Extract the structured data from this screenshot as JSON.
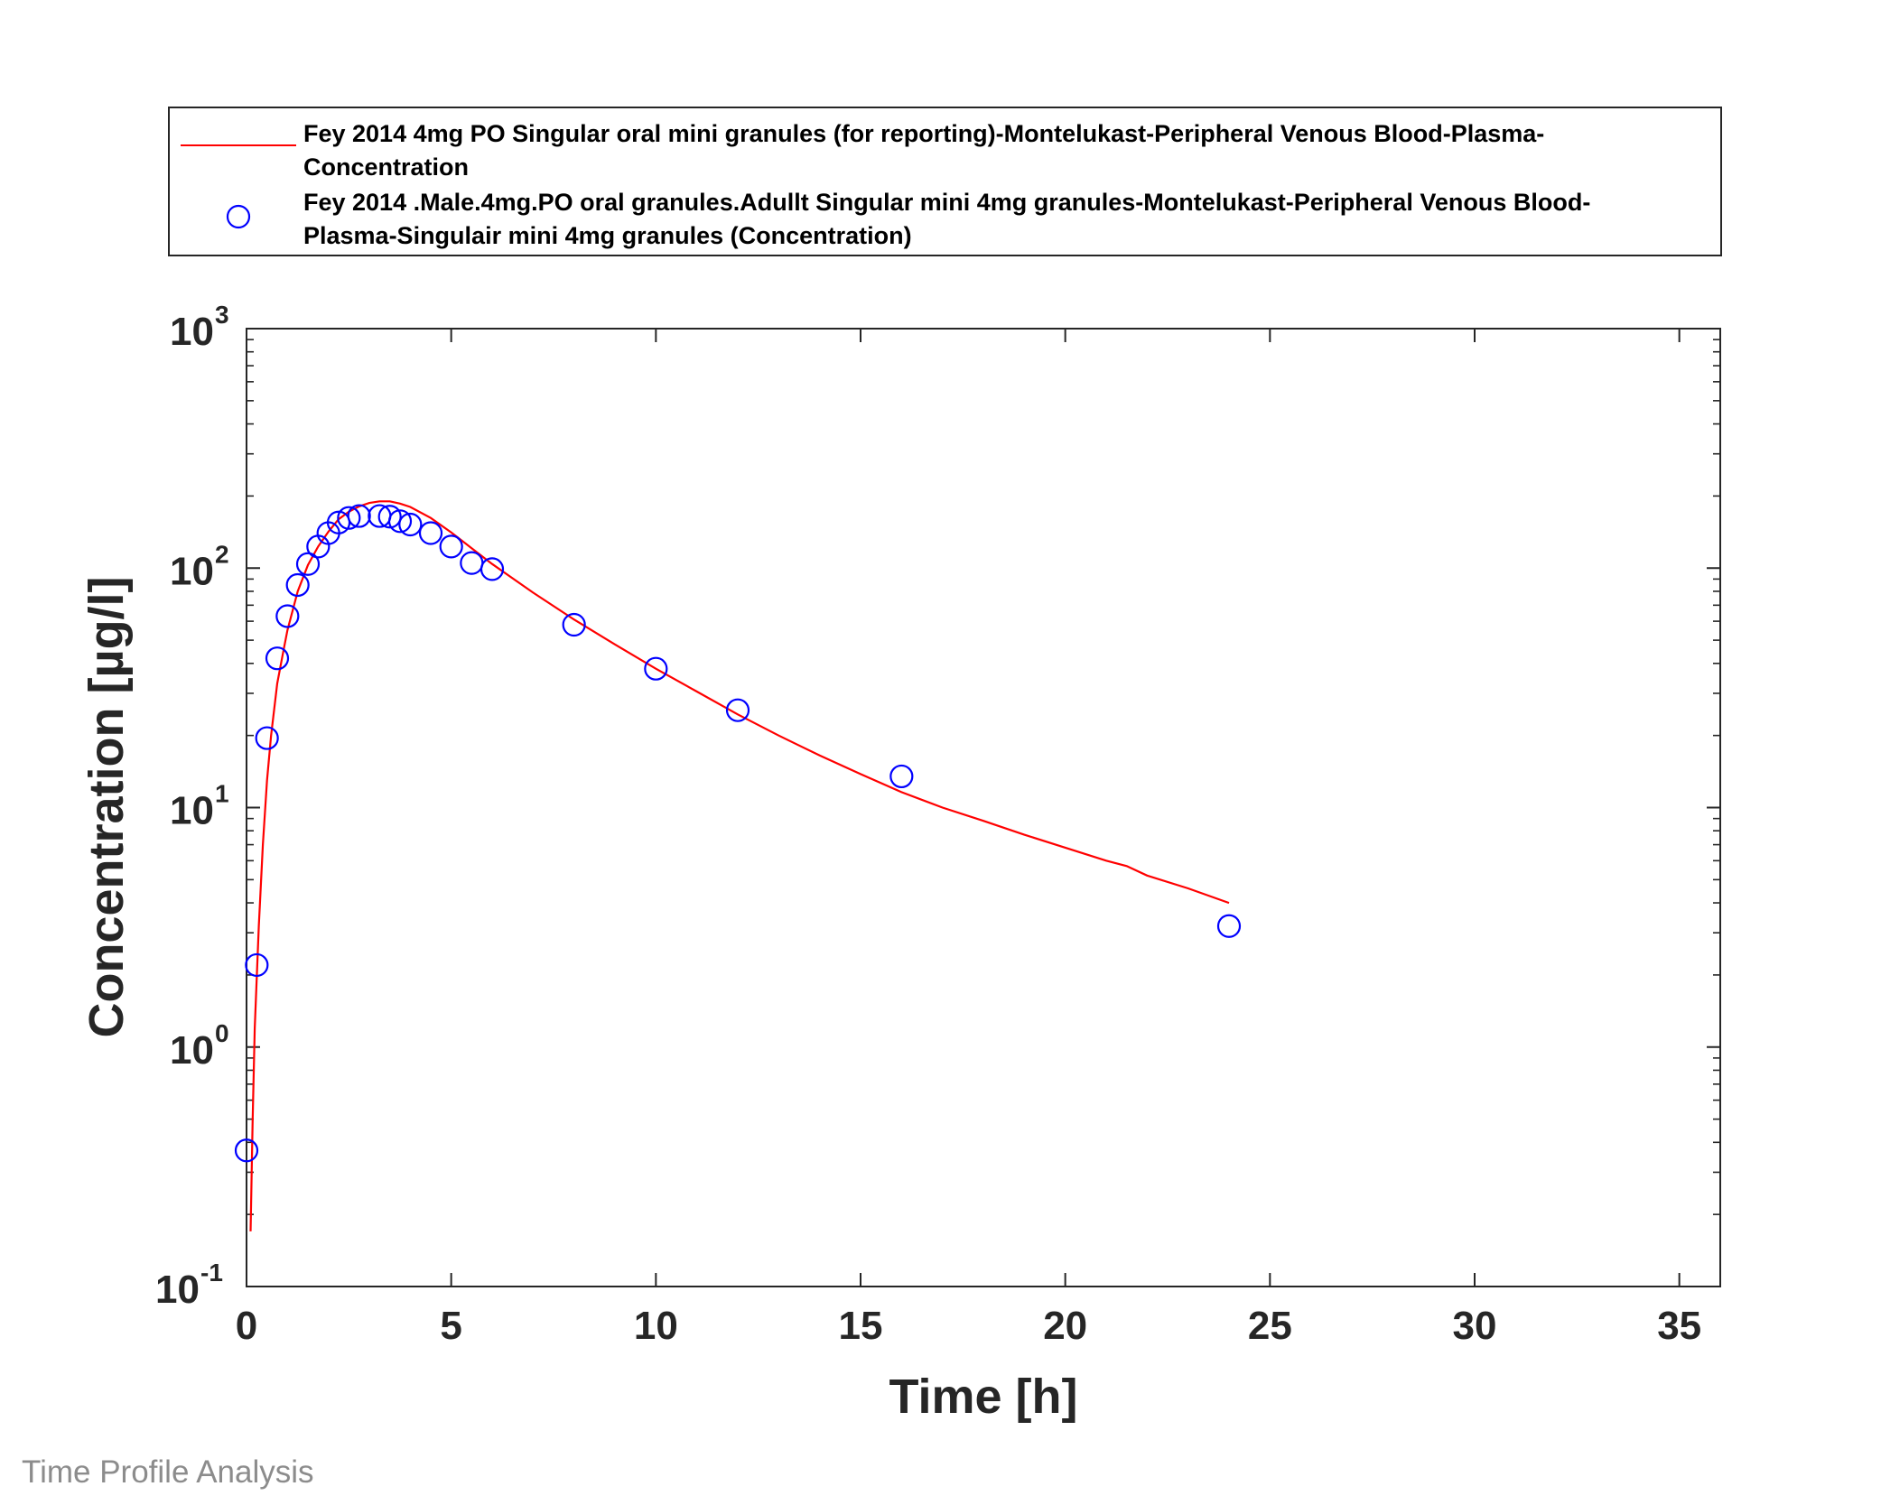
{
  "chart_data": {
    "type": "line",
    "xlabel": "Time [h]",
    "ylabel": "Concentration [µg/l]",
    "xlim": [
      0,
      36
    ],
    "ylim": [
      0.1,
      1000
    ],
    "yscale": "log",
    "grid": false,
    "legend_position": "top (above plot)",
    "xticks": [
      "0",
      "5",
      "10",
      "15",
      "20",
      "25",
      "30",
      "35"
    ],
    "yticks": [
      {
        "base": "10",
        "exp": "-1"
      },
      {
        "base": "10",
        "exp": "0"
      },
      {
        "base": "10",
        "exp": "1"
      },
      {
        "base": "10",
        "exp": "2"
      },
      {
        "base": "10",
        "exp": "3"
      }
    ],
    "series": [
      {
        "name": "Fey 2014 4mg PO Singular oral mini granules (for reporting)-Montelukast-Peripheral Venous Blood-Plasma-Concentration",
        "legend_lines": [
          "Fey 2014 4mg PO Singular oral mini granules (for reporting)-Montelukast-Peripheral Venous Blood-Plasma-",
          "Concentration"
        ],
        "style": "line",
        "color": "#ff0000",
        "x": [
          0.1,
          0.15,
          0.2,
          0.3,
          0.4,
          0.5,
          0.6,
          0.75,
          0.9,
          1.0,
          1.25,
          1.5,
          1.75,
          2.0,
          2.25,
          2.5,
          2.75,
          3.0,
          3.25,
          3.5,
          3.75,
          4.0,
          4.5,
          5.0,
          5.5,
          6.0,
          7.0,
          8.0,
          9.0,
          10.0,
          11.0,
          12.0,
          13.0,
          14.0,
          15.0,
          16.0,
          17.0,
          18.0,
          19.0,
          20.0,
          21.0,
          21.5,
          22.0,
          23.0,
          24.0
        ],
        "y": [
          0.17,
          0.5,
          1.2,
          3.2,
          7.0,
          13,
          20,
          33,
          45,
          55,
          80,
          103,
          123,
          142,
          160,
          172,
          181,
          187,
          190,
          190,
          186,
          180,
          162,
          141,
          121,
          104,
          79,
          61,
          48,
          38,
          30.5,
          24.5,
          20,
          16.5,
          13.8,
          11.6,
          10.0,
          8.8,
          7.7,
          6.8,
          6.0,
          5.7,
          5.2,
          4.6,
          4.0
        ]
      },
      {
        "name": "Fey 2014 .Male.4mg.PO oral granules.Adullt Singular mini 4mg granules-Montelukast-Peripheral Venous Blood-Plasma-Singulair mini 4mg granules (Concentration)",
        "legend_lines": [
          "Fey 2014 .Male.4mg.PO oral granules.Adullt Singular mini 4mg granules-Montelukast-Peripheral Venous Blood-",
          "Plasma-Singulair mini 4mg granules (Concentration)"
        ],
        "style": "markers",
        "marker": "circle",
        "color": "#0000ff",
        "x": [
          0,
          0.25,
          0.5,
          0.75,
          1.0,
          1.25,
          1.5,
          1.75,
          2.0,
          2.25,
          2.5,
          2.75,
          3.25,
          3.5,
          3.75,
          4.0,
          4.5,
          5.0,
          5.5,
          6.0,
          8.0,
          10.0,
          12.0,
          16.0,
          24.0
        ],
        "y": [
          0.37,
          2.2,
          19.5,
          42,
          63,
          85,
          104,
          123,
          140,
          155,
          162,
          165,
          165,
          164,
          157,
          152,
          140,
          123,
          105,
          99,
          58,
          38,
          25.5,
          13.5,
          3.2
        ]
      }
    ]
  },
  "footer": {
    "text": "Time Profile Analysis"
  }
}
